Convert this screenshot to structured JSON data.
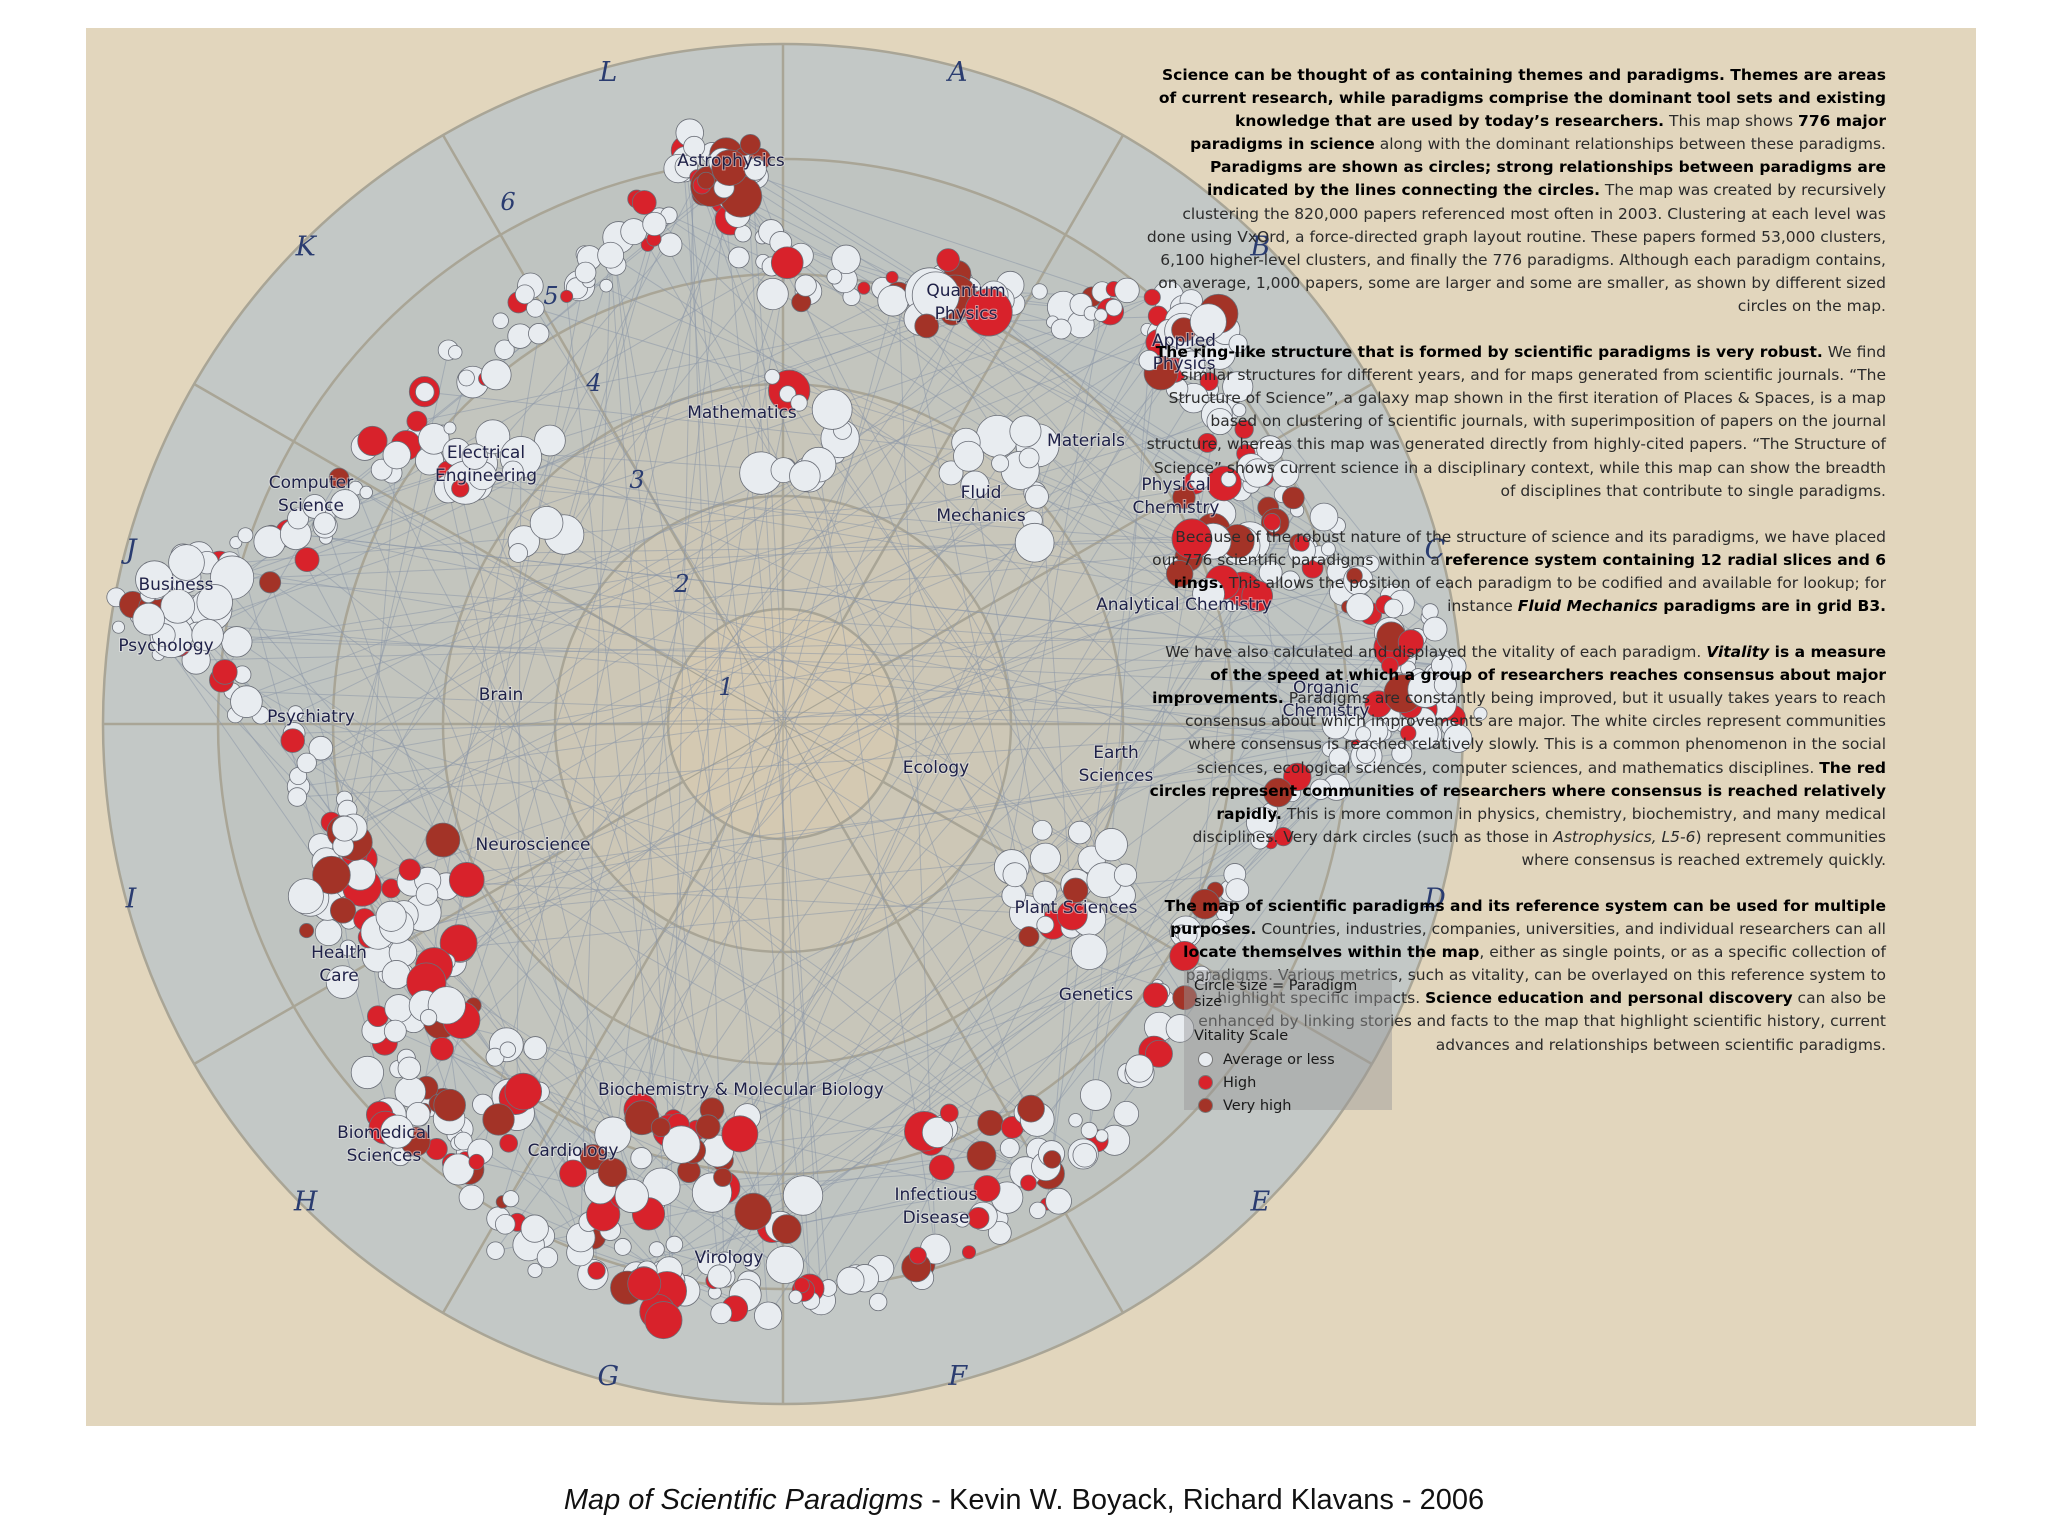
{
  "sector_letters": [
    "A",
    "B",
    "C",
    "D",
    "E",
    "F",
    "G",
    "H",
    "I",
    "J",
    "K",
    "L"
  ],
  "ring_numbers": [
    "1",
    "2",
    "3",
    "4",
    "5",
    "6"
  ],
  "colors": {
    "background": "#e2d6bd",
    "average": "#e8ecf0",
    "high": "#d8222b",
    "very_high": "#a33327",
    "links": "#8c98a8"
  },
  "node_labels": [
    "Astrophysics",
    "Quantum Physics",
    "Applied Physics",
    "Mathematics",
    "Materials",
    "Physical Chemistry",
    "Fluid Mechanics",
    "Electrical Engineering",
    "Computer Science",
    "Analytical Chemistry",
    "Business",
    "Psychology",
    "Organic Chemistry",
    "Brain",
    "Psychiatry",
    "Ecology",
    "Earth Sciences",
    "Neuroscience",
    "Plant Sciences",
    "Health Care",
    "Genetics",
    "Biochemistry & Molecular Biology",
    "Biomedical Sciences",
    "Cardiology",
    "Infectious Disease",
    "Virology"
  ],
  "legend": {
    "size_title": "Circle size = Paradigm size",
    "vitality_title": "Vitality Scale",
    "items": [
      {
        "label": "Average or less",
        "color": "#e8ecf0"
      },
      {
        "label": "High",
        "color": "#d8222b"
      },
      {
        "label": "Very high",
        "color": "#a33327"
      }
    ]
  },
  "text": {
    "p1": [
      {
        "t": "Science can be thought of as containing themes and paradigms. Themes are areas of current research, while paradigms comprise the dominant tool sets and existing knowledge that are used by today’s researchers.",
        "b": true
      },
      {
        "t": " This map shows "
      },
      {
        "t": "776 major paradigms in science",
        "b": true
      },
      {
        "t": " along with the dominant relationships between these paradigms. "
      },
      {
        "t": "Paradigms are shown as circles; strong relationships between paradigms are indicated by the lines connecting the circles.",
        "b": true
      },
      {
        "t": " The map was created by recursively clustering the 820,000 papers referenced most often in 2003. Clustering at each level was done using VxOrd, a force-directed graph layout routine. These papers formed 53,000 clusters, 6,100 higher-level clusters, and finally the 776 paradigms. Although each paradigm contains, on average, 1,000 papers, some are larger and some are smaller, as shown by different sized circles on the map."
      }
    ],
    "p2": [
      {
        "t": "The ring-like structure that is formed by scientific paradigms is very robust.",
        "b": true
      },
      {
        "t": " We find similar structures for different years, and for maps generated from scientific journals. “The Structure of Science”, a galaxy map shown in the first iteration of Places & Spaces, is a map based on clustering of scientific journals, with superimposition of papers on the journal structure, whereas this map was generated directly from highly-cited papers. “The Structure of Science” shows current science in a disciplinary context, while this map can show the breadth of disciplines that contribute to single paradigms."
      }
    ],
    "p3": [
      {
        "t": "Because of the robust nature of the structure of science and its paradigms, we have placed our 776 scientific paradigms within a "
      },
      {
        "t": "reference system containing 12 radial slices and 6 rings.",
        "b": true
      },
      {
        "t": " This allows the position of each paradigm to be codified and available for lookup; for instance "
      },
      {
        "t": "Fluid Mechanics",
        "b": true,
        "i": true
      },
      {
        "t": " paradigms are in grid B3.",
        "b": true
      }
    ],
    "p4": [
      {
        "t": "We have also calculated and displayed the vitality of each paradigm. "
      },
      {
        "t": "Vitality",
        "b": true,
        "i": true
      },
      {
        "t": " is a measure of the speed at which a group of researchers reaches consensus about major improvements.",
        "b": true
      },
      {
        "t": " Paradigms are constantly being improved, but it usually takes years to reach consensus about which improvements are major. The white circles represent communities where consensus is reached relatively slowly. This is a common phenomenon in the social sciences, ecological sciences, computer sciences, and mathematics disciplines. "
      },
      {
        "t": "The red circles represent communities of researchers where consensus is reached relatively rapidly.",
        "b": true
      },
      {
        "t": " This is more common in physics, chemistry, biochemistry, and many medical disciplines. Very dark circles (such as those in "
      },
      {
        "t": "Astrophysics, L5-6",
        "i": true
      },
      {
        "t": ") represent communities where consensus is reached extremely quickly."
      }
    ],
    "p5": [
      {
        "t": "The map of scientific paradigms and its reference system can be used for multiple purposes.",
        "b": true
      },
      {
        "t": " Countries, industries, companies, universities, and individual researchers can all "
      },
      {
        "t": "locate themselves within the map",
        "b": true
      },
      {
        "t": ", either as single points, or as a specific collection of paradigms. Various metrics, such as vitality, can be overlayed on this reference system to highlight specific impacts. "
      },
      {
        "t": "Science education and personal discovery",
        "b": true
      },
      {
        "t": " can also be enhanced by linking stories and facts to the map that highlight scientific history, current advances and relationships between scientific paradigms."
      }
    ]
  },
  "caption": {
    "title": "Map of Scientific Paradigms",
    "rest": "  - Kevin W. Boyack, Richard Klavans - 2006"
  }
}
